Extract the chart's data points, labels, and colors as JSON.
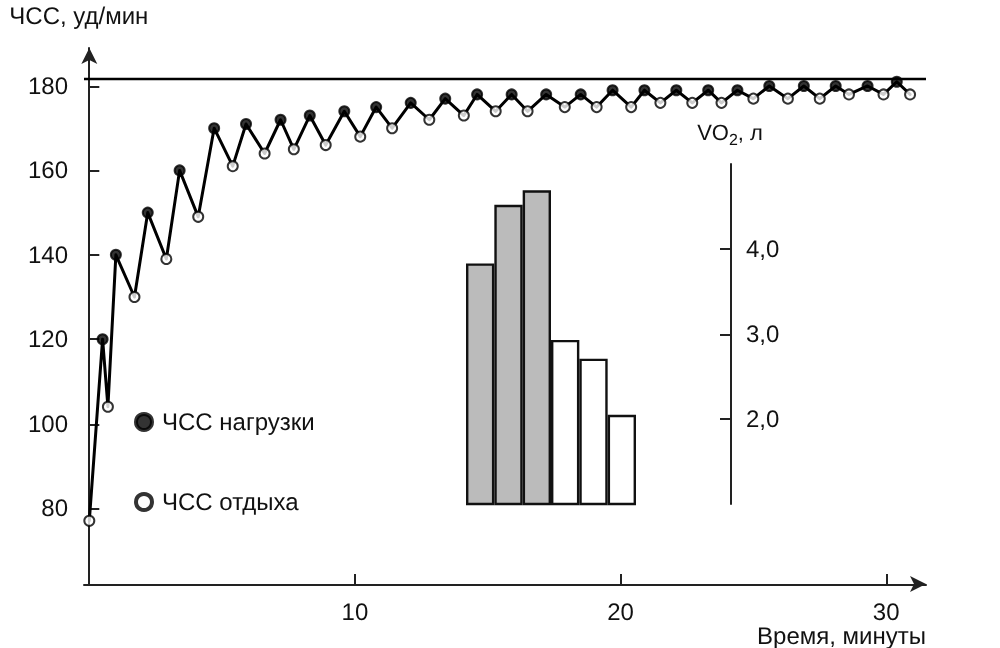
{
  "chart_data": [
    {
      "type": "line",
      "xlabel": "Время, минуты",
      "ylabel": "ЧСС, уд/мин",
      "xlim": [
        -0.2,
        31.5
      ],
      "ylim": [
        62,
        189
      ],
      "xticks": [
        10,
        20,
        30
      ],
      "yticks": [
        80,
        100,
        120,
        140,
        160,
        180
      ],
      "legend": "left",
      "grid": false,
      "ref_lines": [
        {
          "axis": "y",
          "value": 182,
          "color": "#000000",
          "line_style": "solid"
        }
      ],
      "series": [
        {
          "type": "line",
          "color": "#000000",
          "marker": "none",
          "line_style": "solid",
          "x": [
            0,
            0.5,
            0.7,
            1,
            1.7,
            2.2,
            2.9,
            3.4,
            4.1,
            4.7,
            5.4,
            5.9,
            6.6,
            7.2,
            7.7,
            8.3,
            8.9,
            9.6,
            10.2,
            10.8,
            11.4,
            12.1,
            12.8,
            13.4,
            14.1,
            14.6,
            15.3,
            15.9,
            16.5,
            17.2,
            17.9,
            18.5,
            19.1,
            19.7,
            20.4,
            20.9,
            21.5,
            22.1,
            22.7,
            23.3,
            23.8,
            24.4,
            25.0,
            25.6,
            26.3,
            26.9,
            27.5,
            28.1,
            28.6,
            29.3,
            29.9,
            30.4,
            30.9
          ],
          "values": [
            77,
            120,
            104,
            140,
            130,
            150,
            139,
            160,
            149,
            170,
            161,
            171,
            164,
            172,
            165,
            173,
            166,
            174,
            168,
            175,
            170,
            176,
            172,
            177,
            173,
            178,
            174,
            178,
            174,
            178,
            175,
            178,
            175,
            179,
            175,
            179,
            176,
            179,
            176,
            179,
            176,
            179,
            177,
            180,
            177,
            180,
            177,
            180,
            178,
            180,
            178,
            181,
            178
          ]
        },
        {
          "type": "scatter",
          "name": "ЧСС нагрузки",
          "color": "#000000",
          "marker": "circle",
          "x": [
            0.5,
            1,
            2.2,
            3.4,
            4.7,
            5.9,
            7.2,
            8.3,
            9.6,
            10.8,
            12.1,
            13.4,
            14.6,
            15.9,
            17.2,
            18.5,
            19.7,
            20.9,
            22.1,
            23.3,
            24.4,
            25.6,
            26.9,
            28.1,
            29.3,
            30.4
          ],
          "values": [
            120,
            140,
            150,
            160,
            170,
            171,
            172,
            173,
            174,
            175,
            176,
            177,
            178,
            178,
            178,
            178,
            179,
            179,
            179,
            179,
            179,
            180,
            180,
            180,
            180,
            181
          ]
        },
        {
          "type": "scatter",
          "name": "ЧСС отдыха",
          "color": "#ffffff",
          "marker": "circle",
          "x": [
            0,
            0.7,
            1.7,
            2.9,
            4.1,
            5.4,
            6.6,
            7.7,
            8.9,
            10.2,
            11.4,
            12.8,
            14.1,
            15.3,
            16.5,
            17.9,
            19.1,
            20.4,
            21.5,
            22.7,
            23.8,
            25.0,
            26.3,
            27.5,
            28.6,
            29.9,
            30.9
          ],
          "values": [
            77,
            104,
            130,
            139,
            149,
            161,
            164,
            165,
            166,
            168,
            170,
            172,
            173,
            174,
            174,
            175,
            175,
            175,
            176,
            176,
            176,
            177,
            177,
            177,
            178,
            178,
            178
          ]
        }
      ]
    },
    {
      "type": "bar",
      "ylabel": "VO$_{2}$, л",
      "categories": [
        null,
        null,
        null,
        null,
        null,
        null
      ],
      "values": [
        3.83,
        4.52,
        4.69,
        2.93,
        2.71,
        2.05
      ],
      "colors": [
        "#bbbbbb",
        "#bbbbbb",
        "#bbbbbb",
        "#ffffff",
        "#ffffff",
        "#ffffff"
      ],
      "ylim": [
        1,
        5
      ],
      "yticks": [
        {
          "value": 2,
          "label": "2,0"
        },
        {
          "value": 3,
          "label": "3,0"
        },
        {
          "value": 4,
          "label": "4,0"
        }
      ],
      "grid": false
    }
  ]
}
